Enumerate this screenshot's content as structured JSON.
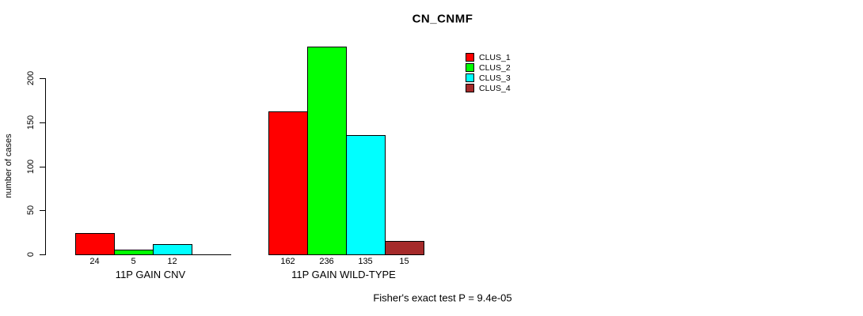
{
  "chart_data": {
    "type": "bar",
    "title": "CN_CNMF",
    "xlabel": "",
    "ylabel": "number of cases",
    "ylim": [
      0,
      200
    ],
    "yticks": [
      0,
      50,
      100,
      150,
      200
    ],
    "grid": false,
    "legend_position": "top-right",
    "categories": [
      "11P GAIN CNV",
      "11P GAIN WILD-TYPE"
    ],
    "series": [
      {
        "name": "CLUS_1",
        "color": "#FF0000",
        "values": [
          24,
          162
        ]
      },
      {
        "name": "CLUS_2",
        "color": "#00FF00",
        "values": [
          5,
          236
        ]
      },
      {
        "name": "CLUS_3",
        "color": "#00FFFF",
        "values": [
          12,
          135
        ]
      },
      {
        "name": "CLUS_4",
        "color": "#A52A2A",
        "values": [
          0,
          15
        ]
      }
    ],
    "bar_value_labels": [
      [
        24,
        5,
        12
      ],
      [
        162,
        236,
        135,
        15
      ]
    ],
    "annotation": "Fisher's exact test P = 9.4e-05"
  }
}
